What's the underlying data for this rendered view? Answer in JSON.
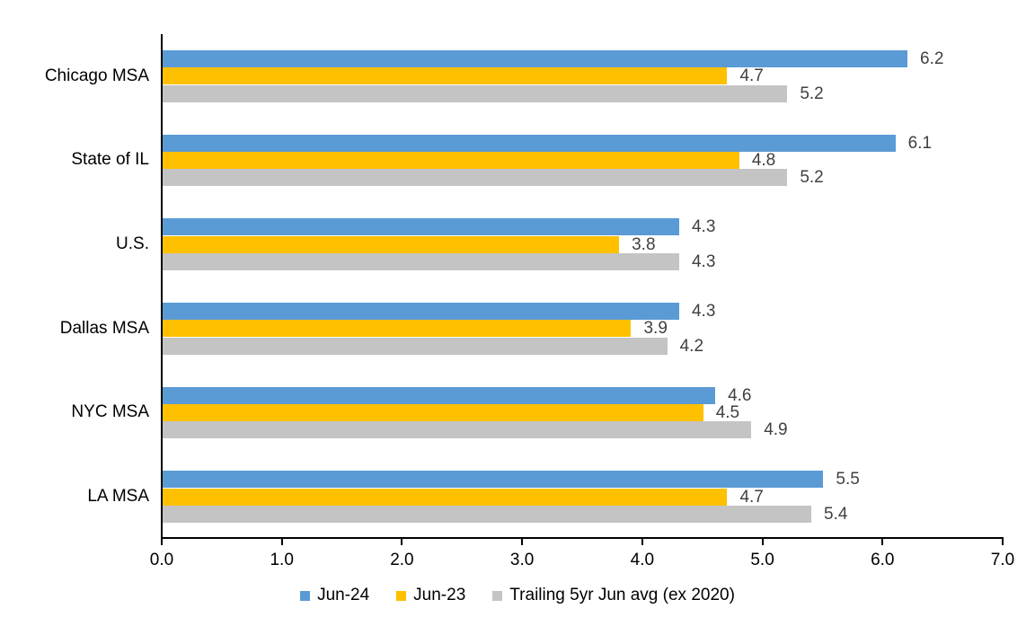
{
  "chart_data": {
    "type": "bar",
    "orientation": "horizontal",
    "title": "",
    "xlabel": "",
    "ylabel": "",
    "categories": [
      "Chicago MSA",
      "State of IL",
      "U.S.",
      "Dallas MSA",
      "NYC MSA",
      "LA MSA"
    ],
    "series": [
      {
        "name": "Jun-24",
        "color": "#5B9BD5",
        "values": [
          6.2,
          6.1,
          4.3,
          4.3,
          4.6,
          5.5
        ]
      },
      {
        "name": "Jun-23",
        "color": "#FFC000",
        "values": [
          4.7,
          4.8,
          3.8,
          3.9,
          4.5,
          4.7
        ]
      },
      {
        "name": "Trailing 5yr Jun avg (ex 2020)",
        "color": "#C4C4C4",
        "values": [
          5.2,
          5.2,
          4.3,
          4.2,
          4.9,
          5.4
        ]
      }
    ],
    "xlim": [
      0.0,
      7.0
    ],
    "x_tick_labels": [
      "0.0",
      "1.0",
      "2.0",
      "3.0",
      "4.0",
      "5.0",
      "6.0",
      "7.0"
    ],
    "value_label_decimals": 1,
    "grid": false,
    "legend_position": "bottom"
  },
  "colors": {
    "axis": "#000000",
    "value_label": "#404040",
    "text": "#000000",
    "background": "#FFFFFF"
  }
}
